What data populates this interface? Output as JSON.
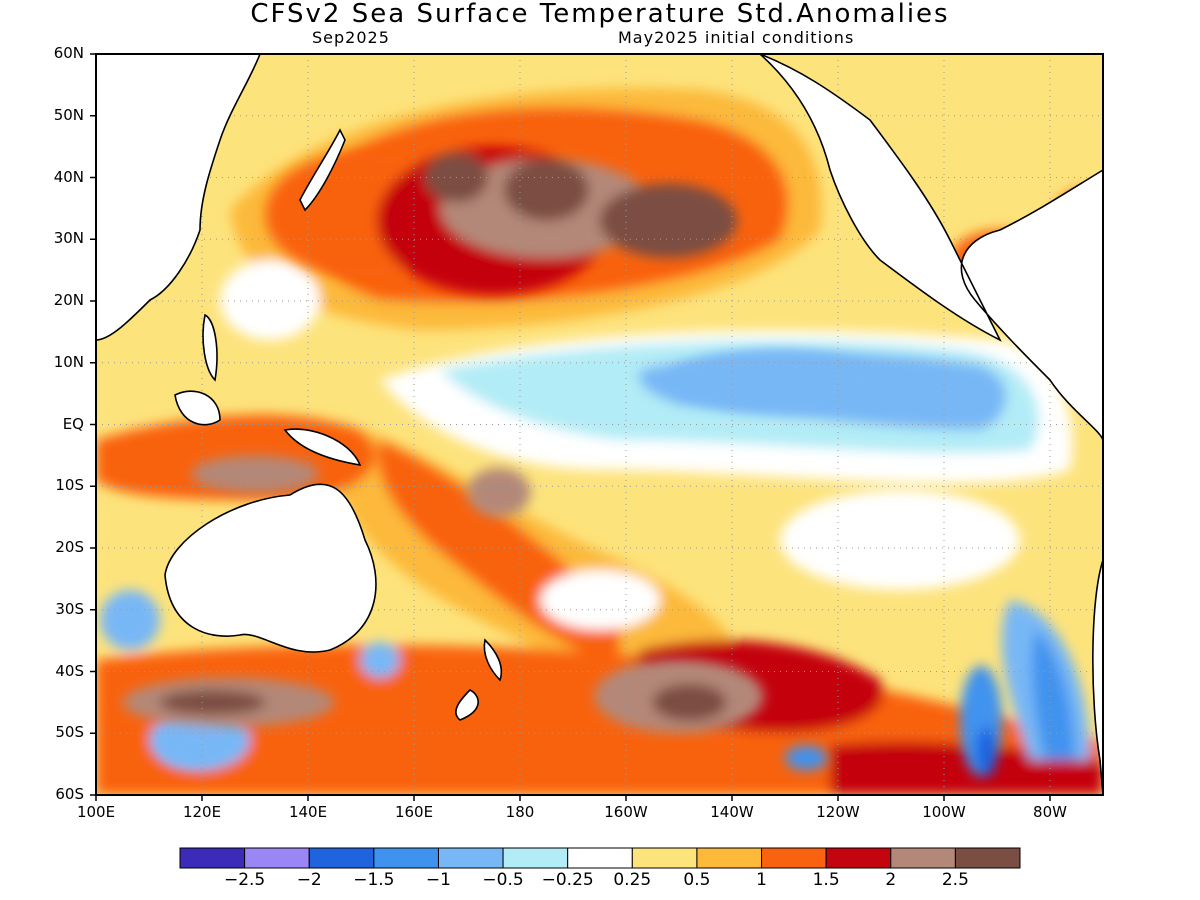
{
  "title": "CFSv2 Sea Surface Temperature Std.Anomalies",
  "subtitle_left": "Sep2025",
  "subtitle_right": "May2025 initial conditions",
  "lat_labels": [
    "60N",
    "50N",
    "40N",
    "30N",
    "20N",
    "10N",
    "EQ",
    "10S",
    "20S",
    "30S",
    "40S",
    "50S",
    "60S"
  ],
  "lon_labels": [
    "100E",
    "120E",
    "140E",
    "160E",
    "180",
    "160W",
    "140W",
    "120W",
    "100W",
    "80W"
  ],
  "lat_range": [
    -60,
    60
  ],
  "lon_range": [
    100,
    290
  ],
  "colorbar": {
    "colors": [
      "#3b2bb8",
      "#9b86f5",
      "#1f63df",
      "#3f93ef",
      "#78b7f6",
      "#b2ecf6",
      "#ffffff",
      "#fde37c",
      "#fcb93a",
      "#f9620e",
      "#c4040f",
      "#b48878",
      "#7b4e43"
    ],
    "labels": [
      "−2.5",
      "−2",
      "−1.5",
      "−1",
      "−0.5",
      "−0.25",
      "0.25",
      "0.5",
      "1",
      "1.5",
      "2",
      "2.5"
    ]
  },
  "regions": [
    {
      "level": 9,
      "lon": 150,
      "lat": 34,
      "rx": 18,
      "ry": 10
    },
    {
      "level": 10,
      "lon": 175,
      "lat": 33,
      "rx": 22,
      "ry": 12
    },
    {
      "level": 11,
      "lon": 185,
      "lat": 35,
      "rx": 20,
      "ry": 8
    },
    {
      "level": 12,
      "lon": 168,
      "lat": 40,
      "rx": 6,
      "ry": 4
    },
    {
      "level": 12,
      "lon": 185,
      "lat": 38,
      "rx": 8,
      "ry": 5
    },
    {
      "level": 12,
      "lon": 208,
      "lat": 33,
      "rx": 13,
      "ry": 6
    },
    {
      "level": 4,
      "lon": 228,
      "lat": 7,
      "rx": 20,
      "ry": 5
    },
    {
      "level": 3,
      "lon": 267,
      "lat": -48,
      "rx": 4,
      "ry": 9
    },
    {
      "level": 2,
      "lon": 268,
      "lat": -53,
      "rx": 2,
      "ry": 4
    },
    {
      "level": 11,
      "lon": 210,
      "lat": -44,
      "rx": 16,
      "ry": 6
    },
    {
      "level": 12,
      "lon": 212,
      "lat": -45,
      "rx": 7,
      "ry": 3
    },
    {
      "level": 11,
      "lon": 125,
      "lat": -45,
      "rx": 20,
      "ry": 4
    },
    {
      "level": 12,
      "lon": 122,
      "lat": -45,
      "rx": 10,
      "ry": 2
    },
    {
      "level": 11,
      "lon": 130,
      "lat": -8,
      "rx": 12,
      "ry": 3
    },
    {
      "level": 11,
      "lon": 176,
      "lat": -11,
      "rx": 6,
      "ry": 4
    },
    {
      "level": 4,
      "lon": 118,
      "lat": -52,
      "rx": 6,
      "ry": 3
    },
    {
      "level": 3,
      "lon": 234,
      "lat": -54,
      "rx": 4,
      "ry": 2
    }
  ]
}
